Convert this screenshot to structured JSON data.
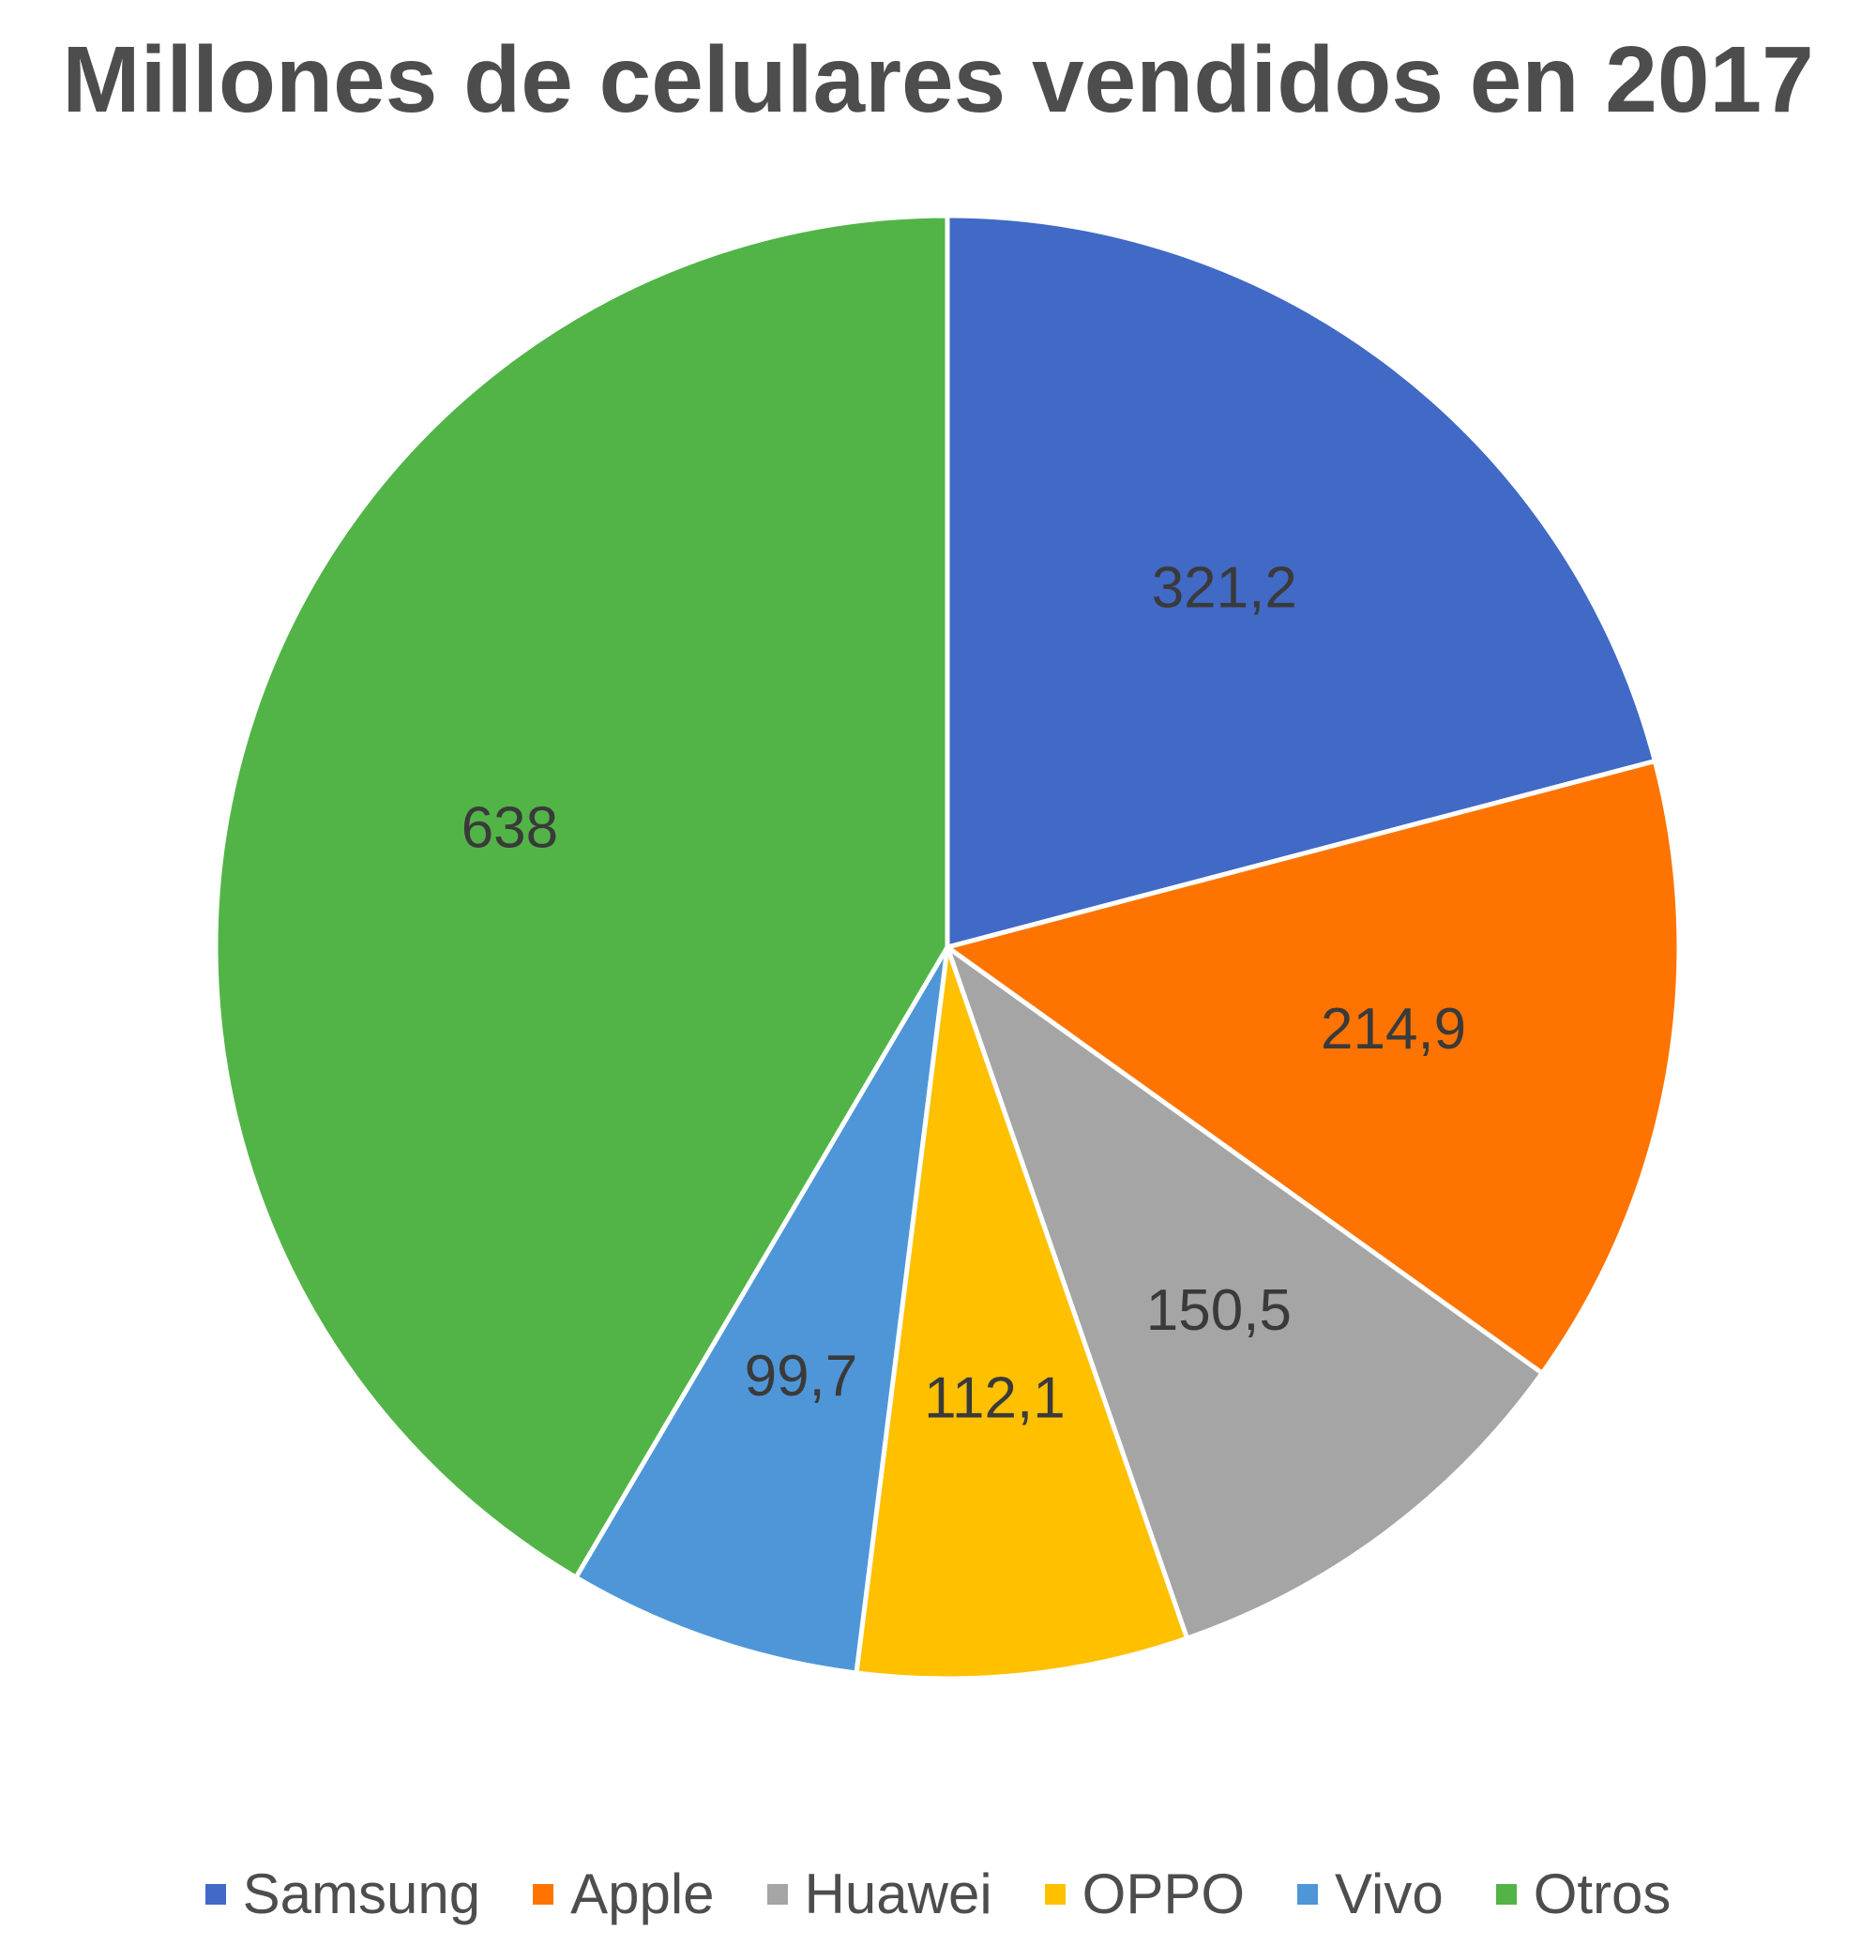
{
  "chart_data": {
    "type": "pie",
    "title": "Millones de celulares vendidos en 2017",
    "categories": [
      "Samsung",
      "Apple",
      "Huawei",
      "OPPO",
      "Vivo",
      "Otros"
    ],
    "values": [
      321.2,
      214.9,
      150.5,
      112.1,
      99.7,
      638
    ],
    "value_labels": [
      "321,2",
      "214,9",
      "150,5",
      "112,1",
      "99,7",
      "638"
    ],
    "colors": [
      "#4169c6",
      "#ff7400",
      "#a5a5a5",
      "#ffc000",
      "#4e96d8",
      "#52b447"
    ],
    "start_angle_deg": 0,
    "direction": "clockwise",
    "legend_position": "bottom",
    "data_labels": true
  }
}
